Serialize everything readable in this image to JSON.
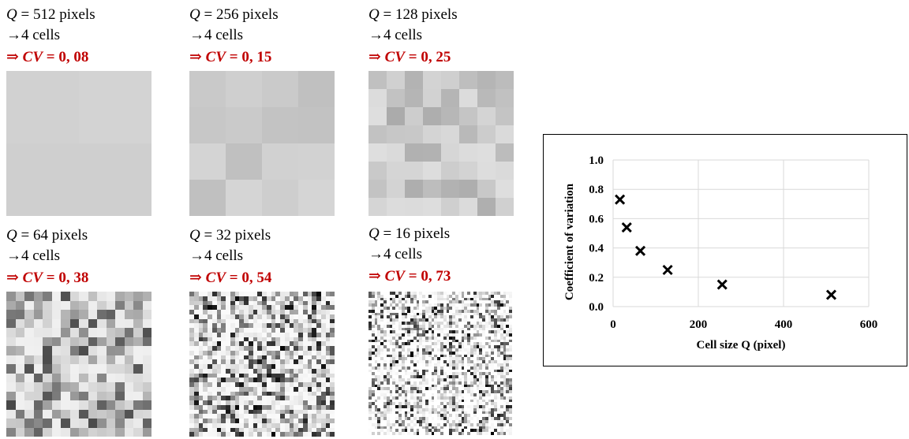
{
  "panels": [
    {
      "q_label": "Q",
      "q_value": "= 512 pixels",
      "cells": "→4 cells",
      "cv_prefix": "⇒ ",
      "cv_var": "CV",
      "cv_value": "= 0, 08"
    },
    {
      "q_label": "Q",
      "q_value": "= 256 pixels",
      "cells": "→4 cells",
      "cv_prefix": "⇒ ",
      "cv_var": "CV",
      "cv_value": "= 0, 15"
    },
    {
      "q_label": "Q",
      "q_value": "= 128 pixels",
      "cells": "→4 cells",
      "cv_prefix": "⇒ ",
      "cv_var": "CV",
      "cv_value": "= 0, 25"
    },
    {
      "q_label": "Q",
      "q_value": "= 64 pixels",
      "cells": "→4 cells",
      "cv_prefix": "⇒ ",
      "cv_var": "CV",
      "cv_value": "= 0, 38"
    },
    {
      "q_label": "Q",
      "q_value": "= 32 pixels",
      "cells": "→4 cells",
      "cv_prefix": "⇒ ",
      "cv_var": "CV",
      "cv_value": "= 0, 54"
    },
    {
      "q_label": "Q",
      "q_value": "= 16 pixels",
      "cells": "→4 cells",
      "cv_prefix": "⇒ ",
      "cv_var": "CV",
      "cv_value": "= 0, 73"
    }
  ],
  "colors": {
    "cv_text": "#c00000",
    "marker": "#000000",
    "gridline": "#d9d9d9"
  },
  "chart_data": {
    "type": "scatter",
    "marker": "x",
    "x": [
      16,
      32,
      64,
      128,
      256,
      512
    ],
    "y": [
      0.73,
      0.54,
      0.38,
      0.25,
      0.15,
      0.08
    ],
    "xlabel": "Cell size Q (pixel)",
    "ylabel": "Coefficient of variation",
    "xlim": [
      0,
      600
    ],
    "ylim": [
      0.0,
      1.0
    ],
    "xticks": [
      "0",
      "200",
      "400",
      "600"
    ],
    "yticks": [
      "0.0",
      "0.2",
      "0.4",
      "0.6",
      "0.8",
      "1.0"
    ],
    "grid": true
  }
}
